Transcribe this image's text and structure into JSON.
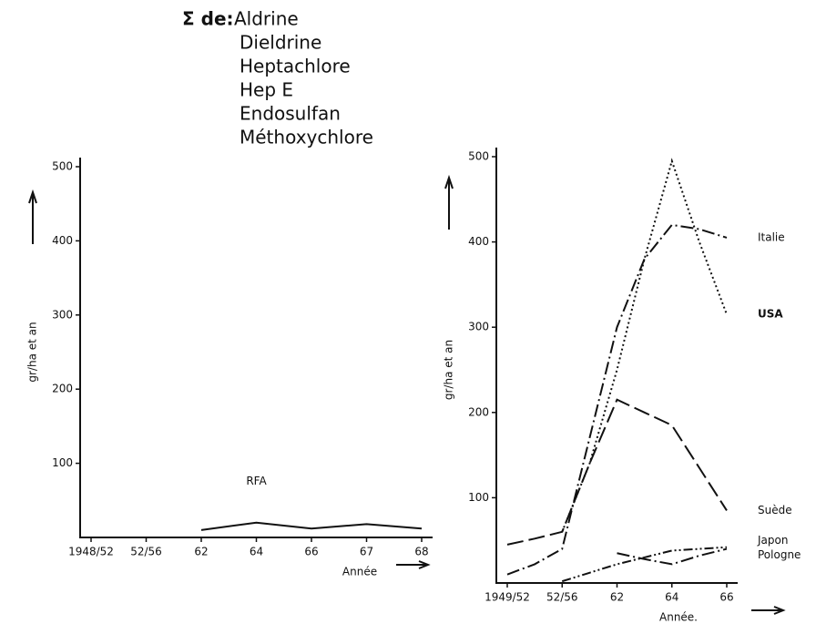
{
  "chart_data": [
    {
      "type": "line",
      "title": "Σ de:",
      "title_items": [
        "Aldrine",
        "Dieldrine",
        "Heptachlore",
        "Hep E",
        "Endosulfan",
        "Méthoxychlore"
      ],
      "ylabel": "gr/ha et an",
      "xlabel": "Année",
      "categories": [
        "1948/52",
        "52/56",
        "62",
        "64",
        "66",
        "67",
        "68"
      ],
      "ylim": [
        0,
        500
      ],
      "yticks": [
        100,
        200,
        300,
        400,
        500
      ],
      "series": [
        {
          "name": "RFA",
          "color": "#111111",
          "dash": "solid",
          "values": [
            null,
            null,
            10,
            20,
            12,
            18,
            12
          ]
        }
      ]
    },
    {
      "type": "line",
      "ylabel": "gr/ha et an",
      "xlabel": "Année.",
      "categories": [
        "1949/52",
        null,
        "52/56",
        null,
        "62",
        null,
        "64",
        null,
        "66"
      ],
      "ylim": [
        0,
        500
      ],
      "yticks": [
        100,
        200,
        300,
        400,
        500
      ],
      "series": [
        {
          "name": "Italie",
          "color": "#111111",
          "dash": "dashdot",
          "values": [
            10,
            22,
            40,
            170,
            300,
            380,
            420,
            415,
            405
          ]
        },
        {
          "name": "USA",
          "color": "#111111",
          "dash": "dotsolid",
          "values": [
            null,
            null,
            60,
            140,
            250,
            380,
            495,
            400,
            315
          ]
        },
        {
          "name": "Suède",
          "color": "#111111",
          "dash": "longdash",
          "values": [
            45,
            52,
            60,
            140,
            215,
            200,
            185,
            135,
            85
          ]
        },
        {
          "name": "Japon",
          "color": "#111111",
          "dash": "dashdot",
          "values": [
            null,
            null,
            null,
            null,
            35,
            28,
            22,
            32,
            40
          ]
        },
        {
          "name": "Pologne",
          "color": "#111111",
          "dash": "dashdotdot",
          "values": [
            null,
            null,
            2,
            12,
            22,
            30,
            38,
            40,
            42
          ]
        }
      ]
    }
  ]
}
